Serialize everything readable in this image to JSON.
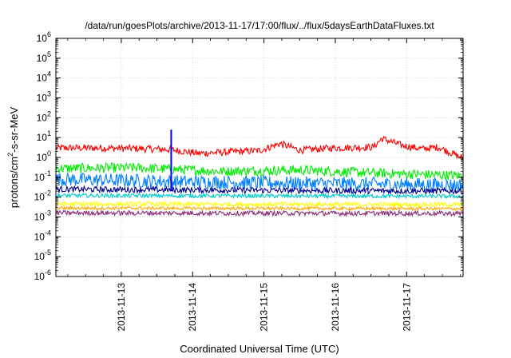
{
  "chart_data": {
    "type": "line",
    "title": "/data/run/goesPlots/archive/2013-11-17/17:00/flux/../flux/5daysEarthDataFluxes.txt",
    "xlabel": "Coordinated Universal Time (UTC)",
    "ylabel": {
      "main": "protons/cm",
      "sup": "2",
      "rest": "-s-sr-MeV"
    },
    "y_scale": "log",
    "ylim_exponents": [
      -6,
      6
    ],
    "y_tick_base": "10",
    "y_tick_exponents": [
      "6",
      "5",
      "4",
      "3",
      "2",
      "1",
      "0",
      "-1",
      "-2",
      "-3",
      "-4",
      "-5",
      "-6"
    ],
    "xlim_days": [
      2013.11,
      2013.18
    ],
    "x_ticks": [
      {
        "label": "2013-11-13",
        "day": 13
      },
      {
        "label": "2013-11-14",
        "day": 14
      },
      {
        "label": "2013-11-15",
        "day": 15
      },
      {
        "label": "2013-11-16",
        "day": 16
      },
      {
        "label": "2013-11-17",
        "day": 17
      }
    ],
    "x_start": "2013-11-12T02:00",
    "x_end": "2013-11-17T19:00",
    "grid": true,
    "legend": "none",
    "series": [
      {
        "color": "#ff0000",
        "profile": [
          [
            0,
            3
          ],
          [
            0.1,
            3
          ],
          [
            0.2,
            2.8
          ],
          [
            0.28,
            2.5
          ],
          [
            0.35,
            1.6
          ],
          [
            0.45,
            2.0
          ],
          [
            0.5,
            2.2
          ],
          [
            0.55,
            5
          ],
          [
            0.6,
            2.3
          ],
          [
            0.68,
            3
          ],
          [
            0.78,
            3.3
          ],
          [
            0.8,
            9
          ],
          [
            0.85,
            4
          ],
          [
            0.9,
            2.7
          ],
          [
            0.94,
            3.3
          ],
          [
            0.97,
            1.7
          ],
          [
            1.0,
            0.9
          ]
        ],
        "noise": 0.18
      },
      {
        "color": "#00ee00",
        "profile": [
          [
            0,
            0.28
          ],
          [
            0.2,
            0.3
          ],
          [
            0.4,
            0.2
          ],
          [
            0.6,
            0.23
          ],
          [
            0.8,
            0.16
          ],
          [
            1.0,
            0.12
          ]
        ],
        "noise": 0.25
      },
      {
        "color": "#0080ff",
        "profile": [
          [
            0,
            0.08
          ],
          [
            0.3,
            0.06
          ],
          [
            0.6,
            0.05
          ],
          [
            0.8,
            0.045
          ],
          [
            1.0,
            0.04
          ]
        ],
        "noise": 0.35
      },
      {
        "color": "#00008b",
        "profile": [
          [
            0,
            0.025
          ],
          [
            0.5,
            0.022
          ],
          [
            1.0,
            0.02
          ]
        ],
        "noise": 0.15
      },
      {
        "color": "#00cccc",
        "profile": [
          [
            0,
            0.012
          ],
          [
            1.0,
            0.011
          ]
        ],
        "noise": 0.1
      },
      {
        "color": "#ffff00",
        "profile": [
          [
            0,
            0.0045
          ],
          [
            1.0,
            0.0042
          ]
        ],
        "noise": 0.12
      },
      {
        "color": "#ffa500",
        "profile": [
          [
            0,
            0.0028
          ],
          [
            1.0,
            0.0026
          ]
        ],
        "noise": 0.08
      },
      {
        "color": "#8b2e7a",
        "profile": [
          [
            0,
            0.0016
          ],
          [
            1.0,
            0.0015
          ]
        ],
        "noise": 0.12
      }
    ],
    "spike": {
      "color": "#0000ff",
      "day": 13.7,
      "y_low": 0.02,
      "y_high": 25
    }
  }
}
